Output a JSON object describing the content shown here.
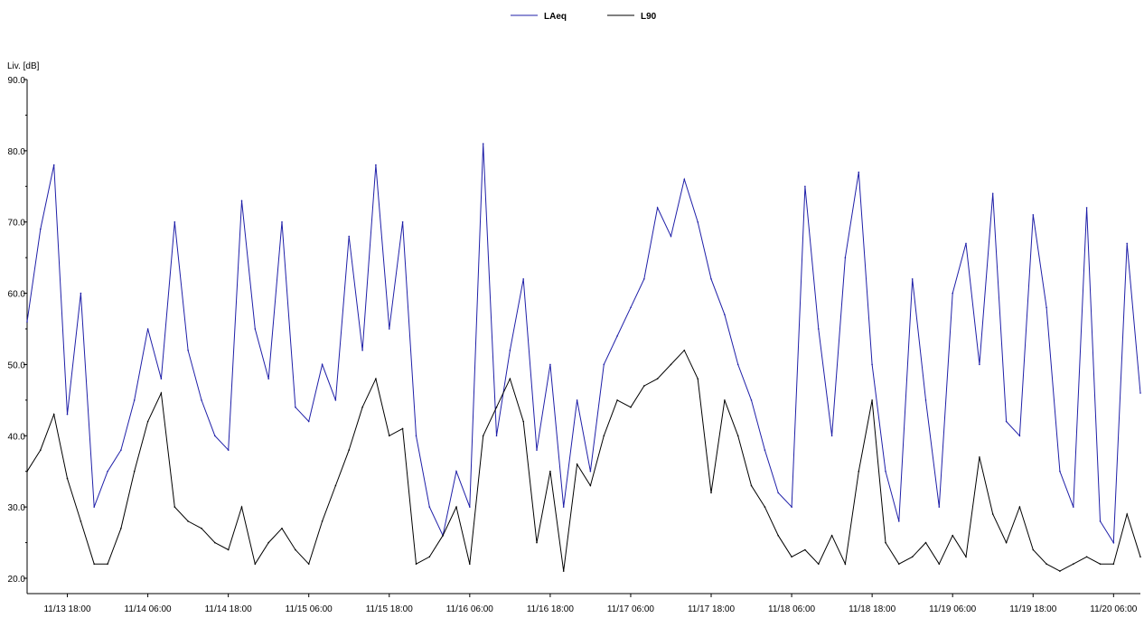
{
  "chart_data": {
    "type": "line",
    "title": "",
    "xlabel": "",
    "ylabel": "Liv. [dB]",
    "ylim": [
      20,
      90
    ],
    "yticks": [
      "20.0",
      "30.0",
      "40.0",
      "50.0",
      "60.0",
      "70.0",
      "80.0",
      "90.0"
    ],
    "xlim": [
      "11/13 12:00",
      "11/20 10:00"
    ],
    "xticks": [
      "11/13 18:00",
      "11/14 06:00",
      "11/14 18:00",
      "11/15 06:00",
      "11/15 18:00",
      "11/16 06:00",
      "11/16 18:00",
      "11/17 06:00",
      "11/17 18:00",
      "11/18 06:00",
      "11/18 18:00",
      "11/19 06:00",
      "11/19 18:00",
      "11/20 06:00"
    ],
    "grid": false,
    "legend_position": "top-center",
    "colors": {
      "LAeq": "#1f1fa8",
      "L90": "#000000"
    },
    "series": [
      {
        "name": "LAeq",
        "x": [
          "11/13 12:00",
          "11/13 14:00",
          "11/13 16:00",
          "11/13 18:00",
          "11/13 20:00",
          "11/13 22:00",
          "11/14 00:00",
          "11/14 02:00",
          "11/14 04:00",
          "11/14 06:00",
          "11/14 08:00",
          "11/14 10:00",
          "11/14 12:00",
          "11/14 14:00",
          "11/14 16:00",
          "11/14 18:00",
          "11/14 20:00",
          "11/14 22:00",
          "11/15 00:00",
          "11/15 02:00",
          "11/15 04:00",
          "11/15 06:00",
          "11/15 08:00",
          "11/15 10:00",
          "11/15 12:00",
          "11/15 14:00",
          "11/15 16:00",
          "11/15 18:00",
          "11/15 20:00",
          "11/15 22:00",
          "11/16 00:00",
          "11/16 02:00",
          "11/16 04:00",
          "11/16 06:00",
          "11/16 08:00",
          "11/16 10:00",
          "11/16 12:00",
          "11/16 14:00",
          "11/16 16:00",
          "11/16 18:00",
          "11/16 20:00",
          "11/16 22:00",
          "11/17 00:00",
          "11/17 02:00",
          "11/17 04:00",
          "11/17 06:00",
          "11/17 08:00",
          "11/17 10:00",
          "11/17 12:00",
          "11/17 14:00",
          "11/17 16:00",
          "11/17 18:00",
          "11/17 20:00",
          "11/17 22:00",
          "11/18 00:00",
          "11/18 02:00",
          "11/18 04:00",
          "11/18 06:00",
          "11/18 08:00",
          "11/18 10:00",
          "11/18 12:00",
          "11/18 14:00",
          "11/18 16:00",
          "11/18 18:00",
          "11/18 20:00",
          "11/18 22:00",
          "11/19 00:00",
          "11/19 02:00",
          "11/19 04:00",
          "11/19 06:00",
          "11/19 08:00",
          "11/19 10:00",
          "11/19 12:00",
          "11/19 14:00",
          "11/19 16:00",
          "11/19 18:00",
          "11/19 20:00",
          "11/19 22:00",
          "11/20 00:00",
          "11/20 02:00",
          "11/20 04:00",
          "11/20 06:00",
          "11/20 08:00",
          "11/20 10:00"
        ],
        "values": [
          56,
          69,
          78,
          43,
          60,
          30,
          35,
          38,
          45,
          55,
          48,
          70,
          52,
          45,
          40,
          38,
          73,
          55,
          48,
          70,
          44,
          42,
          50,
          45,
          68,
          52,
          78,
          55,
          70,
          40,
          30,
          26,
          35,
          30,
          81,
          40,
          52,
          62,
          38,
          50,
          30,
          45,
          35,
          50,
          54,
          58,
          62,
          72,
          68,
          76,
          70,
          62,
          57,
          50,
          45,
          38,
          32,
          30,
          75,
          55,
          40,
          65,
          77,
          50,
          35,
          28,
          62,
          45,
          30,
          60,
          67,
          50,
          74,
          42,
          40,
          71,
          58,
          35,
          30,
          72,
          28,
          25,
          67,
          46
        ]
      },
      {
        "name": "L90",
        "x": [
          "11/13 12:00",
          "11/13 14:00",
          "11/13 16:00",
          "11/13 18:00",
          "11/13 20:00",
          "11/13 22:00",
          "11/14 00:00",
          "11/14 02:00",
          "11/14 04:00",
          "11/14 06:00",
          "11/14 08:00",
          "11/14 10:00",
          "11/14 12:00",
          "11/14 14:00",
          "11/14 16:00",
          "11/14 18:00",
          "11/14 20:00",
          "11/14 22:00",
          "11/15 00:00",
          "11/15 02:00",
          "11/15 04:00",
          "11/15 06:00",
          "11/15 08:00",
          "11/15 10:00",
          "11/15 12:00",
          "11/15 14:00",
          "11/15 16:00",
          "11/15 18:00",
          "11/15 20:00",
          "11/15 22:00",
          "11/16 00:00",
          "11/16 02:00",
          "11/16 04:00",
          "11/16 06:00",
          "11/16 08:00",
          "11/16 10:00",
          "11/16 12:00",
          "11/16 14:00",
          "11/16 16:00",
          "11/16 18:00",
          "11/16 20:00",
          "11/16 22:00",
          "11/17 00:00",
          "11/17 02:00",
          "11/17 04:00",
          "11/17 06:00",
          "11/17 08:00",
          "11/17 10:00",
          "11/17 12:00",
          "11/17 14:00",
          "11/17 16:00",
          "11/17 18:00",
          "11/17 20:00",
          "11/17 22:00",
          "11/18 00:00",
          "11/18 02:00",
          "11/18 04:00",
          "11/18 06:00",
          "11/18 08:00",
          "11/18 10:00",
          "11/18 12:00",
          "11/18 14:00",
          "11/18 16:00",
          "11/18 18:00",
          "11/18 20:00",
          "11/18 22:00",
          "11/19 00:00",
          "11/19 02:00",
          "11/19 04:00",
          "11/19 06:00",
          "11/19 08:00",
          "11/19 10:00",
          "11/19 12:00",
          "11/19 14:00",
          "11/19 16:00",
          "11/19 18:00",
          "11/19 20:00",
          "11/19 22:00",
          "11/20 00:00",
          "11/20 02:00",
          "11/20 04:00",
          "11/20 06:00",
          "11/20 08:00",
          "11/20 10:00"
        ],
        "values": [
          35,
          38,
          43,
          34,
          28,
          22,
          22,
          27,
          35,
          42,
          46,
          30,
          28,
          27,
          25,
          24,
          30,
          22,
          25,
          27,
          24,
          22,
          28,
          33,
          38,
          44,
          48,
          40,
          41,
          22,
          23,
          26,
          30,
          22,
          40,
          44,
          48,
          42,
          25,
          35,
          21,
          36,
          33,
          40,
          45,
          44,
          47,
          48,
          50,
          52,
          48,
          32,
          45,
          40,
          33,
          30,
          26,
          23,
          24,
          22,
          26,
          22,
          35,
          45,
          25,
          22,
          23,
          25,
          22,
          26,
          23,
          37,
          29,
          25,
          30,
          24,
          22,
          21,
          22,
          23,
          22,
          22,
          29,
          23
        ]
      }
    ]
  }
}
